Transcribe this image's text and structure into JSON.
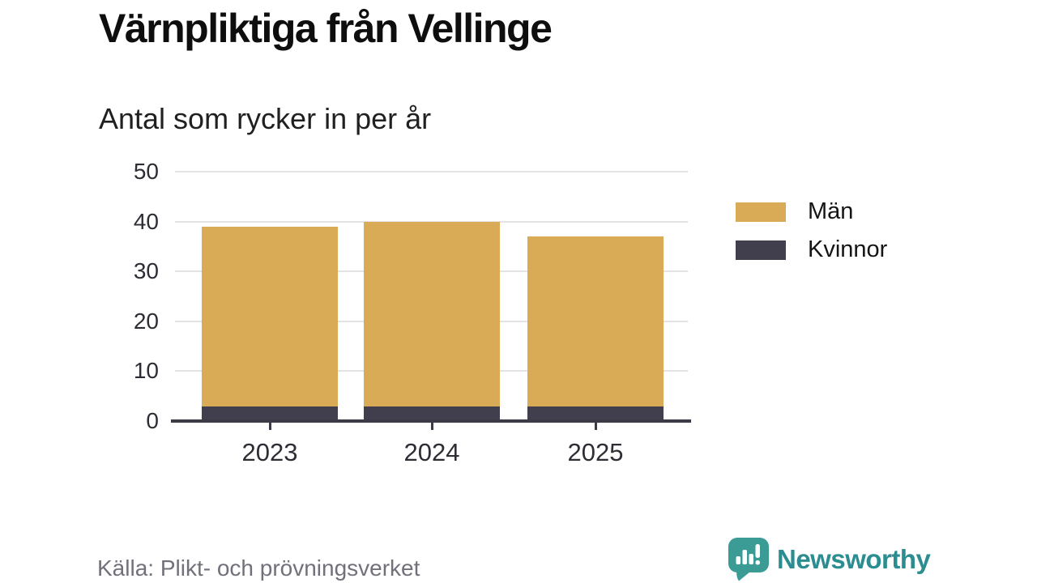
{
  "header": {
    "title": "Värnpliktiga från Vellinge",
    "subtitle": "Antal som rycker in per år"
  },
  "chart_data": {
    "type": "bar",
    "stacked": true,
    "categories": [
      "2023",
      "2024",
      "2025"
    ],
    "series": [
      {
        "name": "Män",
        "color": "#d9ab57",
        "values": [
          36,
          37,
          34
        ]
      },
      {
        "name": "Kvinnor",
        "color": "#413f4e",
        "values": [
          3,
          3,
          3
        ]
      }
    ],
    "stacked_totals": [
      39,
      40,
      37
    ],
    "ylim": [
      0,
      50
    ],
    "yticks": [
      0,
      10,
      20,
      30,
      40,
      50
    ],
    "xlabel": "",
    "ylabel": "",
    "grid": "horizontal-light",
    "legend_position": "right"
  },
  "legend": {
    "items": [
      {
        "label": "Män",
        "color": "#d9ab57"
      },
      {
        "label": "Kvinnor",
        "color": "#413f4e"
      }
    ]
  },
  "footer": {
    "source": "Källa: Plikt- och prövningsverket",
    "brand_name": "Newsworthy",
    "brand_icon": "newsworthy-speech-bubble-bar-chart-icon"
  },
  "colors": {
    "bar_men": "#d9ab57",
    "bar_women": "#413f4e",
    "axis": "#3b3a45",
    "gridline": "#e3e3e5",
    "brand_bubble": "#3b9b95",
    "brand_text": "#2b8d90"
  }
}
